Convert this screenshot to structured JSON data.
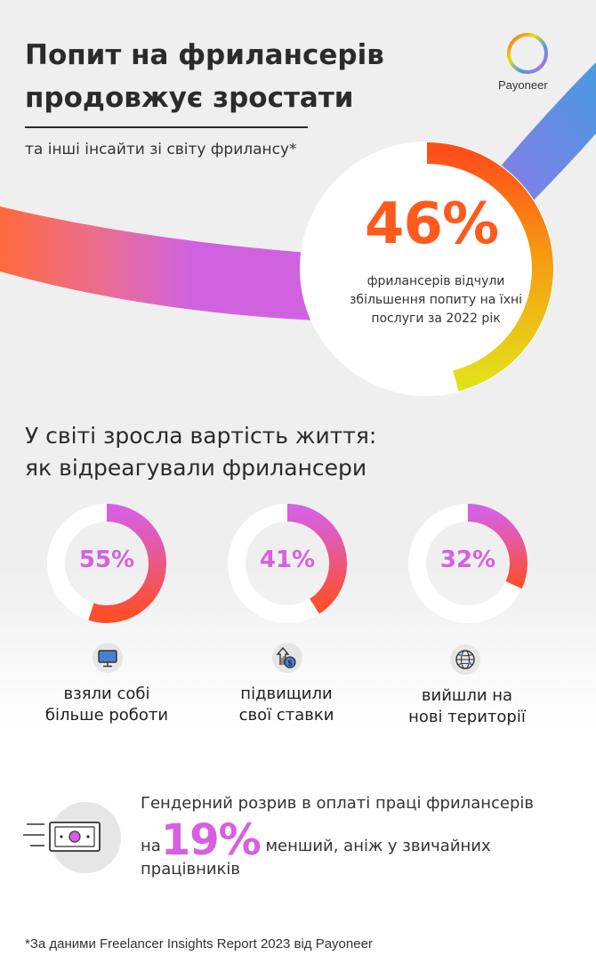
{
  "header": {
    "title_line1": "Попит на фрилансерів",
    "title_line2": "продовжує зростати",
    "subtitle": "та інші інсайти зі світу фрилансу*"
  },
  "brand": {
    "name": "Payoneer",
    "colors": {
      "orange": "#ff5a1c",
      "magenta": "#d660e0",
      "yellow": "#e3e01b",
      "blue": "#5b8ee8"
    }
  },
  "hero_stat": {
    "percent": "46%",
    "value": 46,
    "description": "фрилансерів відчули збільшення попиту на їхні послуги за 2022 рік"
  },
  "cost_of_living": {
    "title_line1": "У світі зросла вартість життя:",
    "title_line2": "як відреагували фрилансери",
    "stats": [
      {
        "percent": "55%",
        "value": 55,
        "icon": "monitor-icon",
        "label_line1": "взяли собі",
        "label_line2": "більше роботи"
      },
      {
        "percent": "41%",
        "value": 41,
        "icon": "rate-increase-icon",
        "label_line1": "підвищили",
        "label_line2": "свої ставки"
      },
      {
        "percent": "32%",
        "value": 32,
        "icon": "globe-icon",
        "label_line1": "вийшли на",
        "label_line2": "нові території"
      }
    ]
  },
  "gender_gap": {
    "icon": "money-bill-icon",
    "line1": "Гендерний розрив в оплаті праці фрилансерів",
    "prefix": "на",
    "percent": "19%",
    "suffix": "менший, аніж у звичайних",
    "line3": "працівників"
  },
  "footnote": "*За даними Freelancer Insights Report 2023 від Payoneer"
}
